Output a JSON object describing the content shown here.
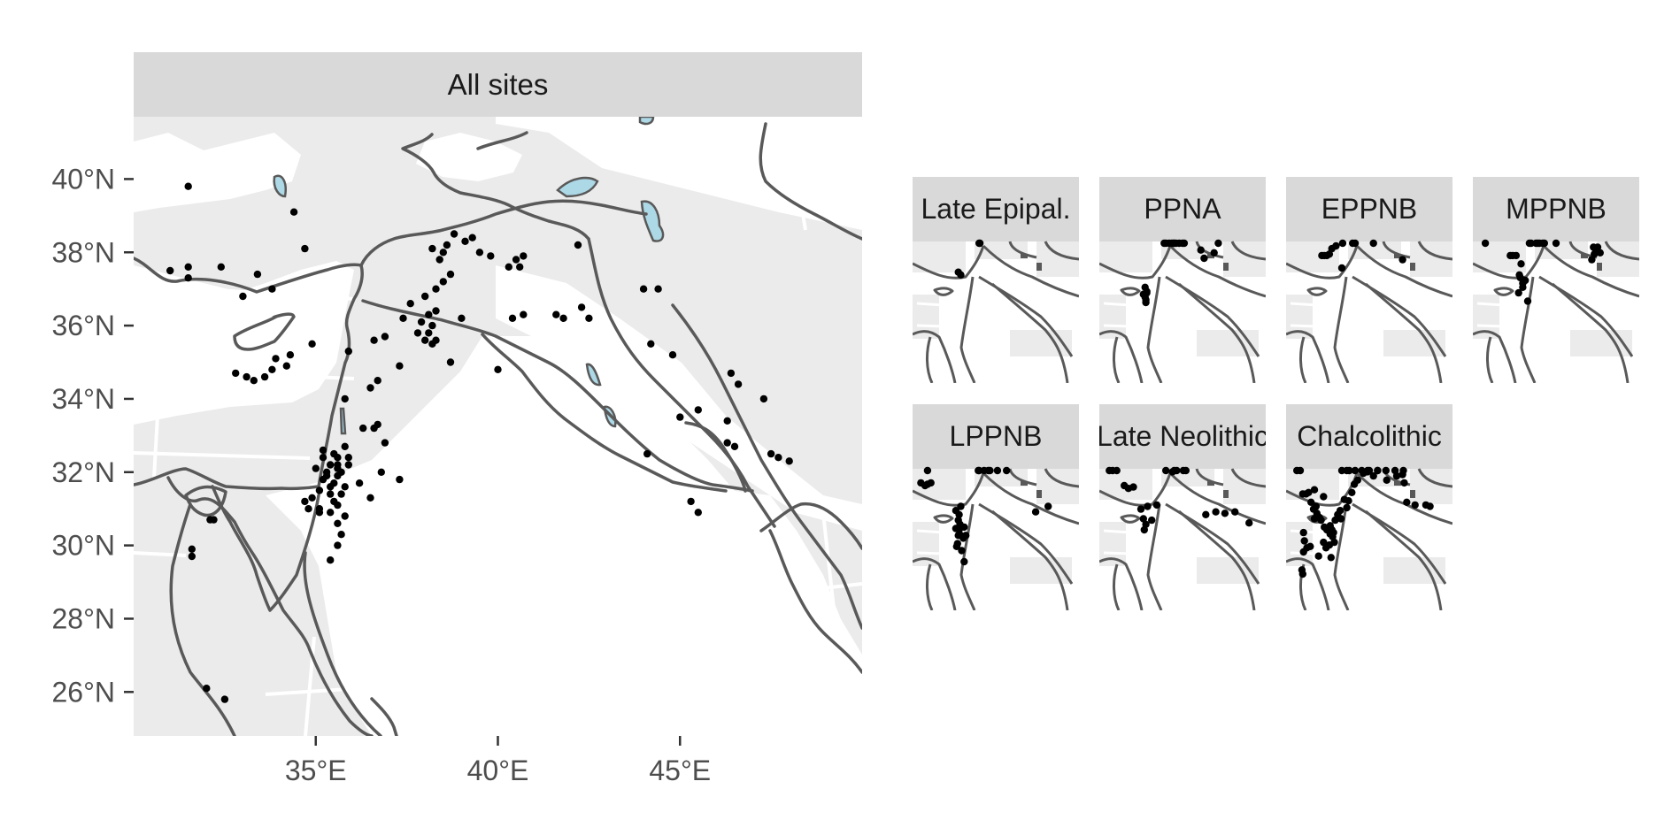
{
  "main_panel": {
    "title": "All sites",
    "y_ticks": [
      {
        "lat": 40,
        "label": "40°N"
      },
      {
        "lat": 38,
        "label": "38°N"
      },
      {
        "lat": 36,
        "label": "36°N"
      },
      {
        "lat": 34,
        "label": "34°N"
      },
      {
        "lat": 32,
        "label": "32°N"
      },
      {
        "lat": 30,
        "label": "30°N"
      },
      {
        "lat": 28,
        "label": "28°N"
      },
      {
        "lat": 26,
        "label": "26°N"
      }
    ],
    "x_ticks": [
      {
        "lon": 35,
        "label": "35°E"
      },
      {
        "lon": 40,
        "label": "40°E"
      },
      {
        "lon": 45,
        "label": "45°E"
      }
    ]
  },
  "facets": [
    {
      "title": "Late Epipal."
    },
    {
      "title": "PPNA"
    },
    {
      "title": "EPPNB"
    },
    {
      "title": "MPPNB"
    },
    {
      "title": "LPPNB"
    },
    {
      "title": "Late Neolithic"
    },
    {
      "title": "Chalcolithic"
    }
  ],
  "colors": {
    "strip_bg": "#d9d9d9",
    "panel_bg": "#ebebeb",
    "lowland_fill": "#ffffff",
    "lake_fill": "#add8e6",
    "river_border": "#595959",
    "site_point": "#000000"
  },
  "map_extent": {
    "lon": [
      30,
      50
    ],
    "lat": [
      24.8,
      41.7
    ]
  },
  "sites": {
    "all": [
      [
        31.5,
        39.8
      ],
      [
        31.0,
        37.5
      ],
      [
        31.5,
        37.6
      ],
      [
        31.5,
        37.3
      ],
      [
        32.4,
        37.6
      ],
      [
        33.0,
        36.8
      ],
      [
        33.4,
        37.4
      ],
      [
        33.8,
        37.0
      ],
      [
        34.4,
        39.1
      ],
      [
        34.7,
        38.1
      ],
      [
        32.8,
        34.7
      ],
      [
        33.1,
        34.6
      ],
      [
        33.3,
        34.5
      ],
      [
        33.6,
        34.6
      ],
      [
        33.8,
        34.8
      ],
      [
        34.2,
        34.9
      ],
      [
        33.9,
        35.1
      ],
      [
        34.3,
        35.2
      ],
      [
        34.9,
        35.5
      ],
      [
        35.5,
        32.5
      ],
      [
        35.6,
        32.2
      ],
      [
        35.7,
        32.0
      ],
      [
        35.5,
        31.7
      ],
      [
        35.4,
        31.4
      ],
      [
        35.5,
        31.2
      ],
      [
        35.4,
        30.9
      ],
      [
        35.6,
        30.6
      ],
      [
        35.7,
        30.3
      ],
      [
        35.6,
        30.0
      ],
      [
        35.8,
        32.7
      ],
      [
        35.9,
        32.4
      ],
      [
        35.3,
        32.0
      ],
      [
        35.2,
        31.8
      ],
      [
        35.1,
        31.5
      ],
      [
        34.9,
        31.3
      ],
      [
        34.8,
        31.0
      ],
      [
        35.1,
        31.0
      ],
      [
        35.3,
        31.9
      ],
      [
        35.8,
        31.6
      ],
      [
        35.2,
        32.6
      ],
      [
        35.0,
        32.1
      ],
      [
        35.6,
        31.9
      ],
      [
        35.7,
        31.4
      ],
      [
        35.6,
        31.1
      ],
      [
        35.8,
        30.8
      ],
      [
        35.4,
        29.6
      ],
      [
        35.9,
        32.2
      ],
      [
        35.6,
        32.1
      ],
      [
        35.4,
        32.2
      ],
      [
        34.7,
        31.2
      ],
      [
        35.1,
        30.9
      ],
      [
        35.4,
        31.6
      ],
      [
        35.6,
        32.4
      ],
      [
        35.2,
        32.4
      ],
      [
        36.2,
        31.7
      ],
      [
        36.5,
        31.3
      ],
      [
        36.8,
        32.0
      ],
      [
        36.9,
        32.8
      ],
      [
        37.3,
        31.8
      ],
      [
        36.3,
        33.2
      ],
      [
        36.6,
        33.2
      ],
      [
        36.7,
        33.3
      ],
      [
        35.8,
        34.0
      ],
      [
        35.9,
        35.3
      ],
      [
        36.6,
        35.6
      ],
      [
        36.9,
        35.7
      ],
      [
        36.7,
        34.5
      ],
      [
        36.5,
        34.3
      ],
      [
        37.3,
        34.9
      ],
      [
        37.4,
        36.2
      ],
      [
        37.6,
        36.6
      ],
      [
        37.9,
        36.1
      ],
      [
        37.8,
        35.8
      ],
      [
        38.0,
        35.6
      ],
      [
        38.2,
        35.5
      ],
      [
        38.3,
        35.6
      ],
      [
        38.1,
        35.8
      ],
      [
        38.2,
        36.0
      ],
      [
        38.1,
        36.3
      ],
      [
        38.3,
        36.4
      ],
      [
        38.0,
        36.8
      ],
      [
        38.3,
        37.0
      ],
      [
        38.5,
        37.2
      ],
      [
        38.7,
        37.4
      ],
      [
        38.4,
        37.8
      ],
      [
        38.2,
        38.1
      ],
      [
        38.5,
        38.0
      ],
      [
        38.8,
        38.5
      ],
      [
        38.6,
        38.2
      ],
      [
        39.1,
        38.3
      ],
      [
        39.3,
        38.4
      ],
      [
        39.5,
        38.0
      ],
      [
        39.8,
        37.9
      ],
      [
        40.3,
        37.6
      ],
      [
        40.5,
        37.8
      ],
      [
        40.7,
        37.9
      ],
      [
        40.6,
        37.6
      ],
      [
        38.7,
        35.0
      ],
      [
        39.0,
        36.2
      ],
      [
        40.0,
        34.8
      ],
      [
        40.4,
        36.2
      ],
      [
        40.7,
        36.3
      ],
      [
        41.6,
        36.3
      ],
      [
        41.8,
        36.2
      ],
      [
        42.3,
        36.5
      ],
      [
        42.5,
        36.2
      ],
      [
        42.2,
        38.2
      ],
      [
        44.0,
        37.0
      ],
      [
        44.2,
        35.5
      ],
      [
        44.8,
        35.2
      ],
      [
        45.0,
        33.5
      ],
      [
        45.5,
        33.7
      ],
      [
        46.3,
        33.4
      ],
      [
        46.4,
        34.7
      ],
      [
        46.6,
        34.4
      ],
      [
        47.3,
        34.0
      ],
      [
        46.3,
        32.8
      ],
      [
        46.5,
        32.7
      ],
      [
        47.5,
        32.5
      ],
      [
        47.7,
        32.4
      ],
      [
        48.0,
        32.3
      ],
      [
        44.1,
        32.5
      ],
      [
        45.3,
        31.2
      ],
      [
        45.5,
        30.9
      ],
      [
        44.4,
        37.0
      ],
      [
        31.6,
        29.7
      ],
      [
        31.6,
        29.9
      ],
      [
        32.1,
        30.7
      ],
      [
        32.2,
        30.7
      ],
      [
        32.0,
        26.1
      ],
      [
        32.5,
        25.8
      ]
    ],
    "late_epipal": [
      [
        35.5,
        33.4
      ],
      [
        35.8,
        33.2
      ],
      [
        38.0,
        36.1
      ],
      [
        38.1,
        36.2
      ]
    ],
    "ppna": [
      [
        35.5,
        32.3
      ],
      [
        35.7,
        31.9
      ],
      [
        35.5,
        31.6
      ],
      [
        35.6,
        31.4
      ],
      [
        35.6,
        31.2
      ],
      [
        35.3,
        31.8
      ],
      [
        35.7,
        32.0
      ],
      [
        37.8,
        36.2
      ],
      [
        38.0,
        36.5
      ],
      [
        38.4,
        36.8
      ],
      [
        38.7,
        37.0
      ],
      [
        39.0,
        37.0
      ],
      [
        39.2,
        36.9
      ],
      [
        39.6,
        36.6
      ],
      [
        40.0,
        36.4
      ],
      [
        40.2,
        36.5
      ],
      [
        38.9,
        37.1
      ],
      [
        42.2,
        35.0
      ],
      [
        42.6,
        34.4
      ],
      [
        43.8,
        34.8
      ],
      [
        44.3,
        35.5
      ]
    ],
    "eppnb": [
      [
        34.3,
        34.6
      ],
      [
        34.6,
        34.6
      ],
      [
        34.9,
        34.6
      ],
      [
        35.2,
        34.7
      ],
      [
        35.5,
        35.1
      ],
      [
        36.0,
        35.3
      ],
      [
        36.8,
        35.9
      ],
      [
        38.0,
        36.8
      ],
      [
        38.3,
        37.1
      ],
      [
        40.5,
        36.4
      ],
      [
        36.7,
        33.7
      ],
      [
        44.0,
        34.3
      ]
    ],
    "mppnb": [
      [
        31.5,
        36.7
      ],
      [
        34.5,
        34.6
      ],
      [
        34.8,
        34.6
      ],
      [
        35.2,
        34.6
      ],
      [
        35.8,
        34.0
      ],
      [
        35.6,
        33.2
      ],
      [
        35.7,
        33.0
      ],
      [
        36.0,
        32.6
      ],
      [
        36.0,
        32.3
      ],
      [
        36.3,
        32.8
      ],
      [
        35.5,
        31.9
      ],
      [
        36.6,
        31.3
      ],
      [
        37.6,
        36.3
      ],
      [
        37.8,
        36.5
      ],
      [
        38.0,
        36.8
      ],
      [
        38.4,
        37.0
      ],
      [
        38.6,
        36.9
      ],
      [
        40.0,
        36.0
      ],
      [
        44.5,
        35.2
      ],
      [
        44.8,
        35.0
      ],
      [
        45.0,
        35.2
      ],
      [
        44.3,
        34.3
      ],
      [
        44.6,
        34.7
      ],
      [
        45.3,
        34.8
      ],
      [
        36.8,
        36.8
      ],
      [
        37.0,
        36.9
      ]
    ],
    "lppnb": [
      [
        31.0,
        34.6
      ],
      [
        31.5,
        34.4
      ],
      [
        31.8,
        34.5
      ],
      [
        32.2,
        34.6
      ],
      [
        35.5,
        31.9
      ],
      [
        35.7,
        31.6
      ],
      [
        35.6,
        31.2
      ],
      [
        35.5,
        30.8
      ],
      [
        35.2,
        31.3
      ],
      [
        35.4,
        30.2
      ],
      [
        35.8,
        30.8
      ],
      [
        35.3,
        30.0
      ],
      [
        36.4,
        30.8
      ],
      [
        36.2,
        31.4
      ],
      [
        36.1,
        30.6
      ],
      [
        35.9,
        29.7
      ],
      [
        36.2,
        28.9
      ],
      [
        35.6,
        32.3
      ],
      [
        37.9,
        36.1
      ],
      [
        38.0,
        36.3
      ],
      [
        38.6,
        36.9
      ],
      [
        39.1,
        36.8
      ],
      [
        39.3,
        36.2
      ],
      [
        40.2,
        35.5
      ],
      [
        41.3,
        35.8
      ],
      [
        44.8,
        32.5
      ],
      [
        46.3,
        32.9
      ],
      [
        35.2,
        32.6
      ],
      [
        35.8,
        32.9
      ],
      [
        31.8,
        35.6
      ]
    ],
    "late_neolithic": [
      [
        31.2,
        35.6
      ],
      [
        31.6,
        35.6
      ],
      [
        32.1,
        35.6
      ],
      [
        33.0,
        34.4
      ],
      [
        33.5,
        34.2
      ],
      [
        34.1,
        34.3
      ],
      [
        35.3,
        32.0
      ],
      [
        35.6,
        31.6
      ],
      [
        35.4,
        31.2
      ],
      [
        35.8,
        32.9
      ],
      [
        36.3,
        31.9
      ],
      [
        35.0,
        32.7
      ],
      [
        36.9,
        33.0
      ],
      [
        38.8,
        35.4
      ],
      [
        39.0,
        36.0
      ],
      [
        39.3,
        35.8
      ],
      [
        40.1,
        36.0
      ],
      [
        40.4,
        35.9
      ],
      [
        42.8,
        32.3
      ],
      [
        44.0,
        32.5
      ],
      [
        45.1,
        32.4
      ],
      [
        46.3,
        32.5
      ],
      [
        48.0,
        31.7
      ],
      [
        38.0,
        36.4
      ]
    ],
    "chalcolithic": [
      [
        31.3,
        35.8
      ],
      [
        31.7,
        35.7
      ],
      [
        32.0,
        33.8
      ],
      [
        32.4,
        33.8
      ],
      [
        32.7,
        33.9
      ],
      [
        33.4,
        34.1
      ],
      [
        33.3,
        32.7
      ],
      [
        33.6,
        32.9
      ],
      [
        33.4,
        32.0
      ],
      [
        33.7,
        32.4
      ],
      [
        34.0,
        32.1
      ],
      [
        34.2,
        31.9
      ],
      [
        34.6,
        31.4
      ],
      [
        34.9,
        31.2
      ],
      [
        35.3,
        31.5
      ],
      [
        35.5,
        31.2
      ],
      [
        35.7,
        31.0
      ],
      [
        35.3,
        30.9
      ],
      [
        35.6,
        30.7
      ],
      [
        35.8,
        30.3
      ],
      [
        35.2,
        30.1
      ],
      [
        35.9,
        31.9
      ],
      [
        36.2,
        32.3
      ],
      [
        36.5,
        32.6
      ],
      [
        37.3,
        32.8
      ],
      [
        37.0,
        33.4
      ],
      [
        37.5,
        33.3
      ],
      [
        37.9,
        33.9
      ],
      [
        38.2,
        34.5
      ],
      [
        38.6,
        34.8
      ],
      [
        39.3,
        35.3
      ],
      [
        39.8,
        35.4
      ],
      [
        40.5,
        35.1
      ],
      [
        41.0,
        35.6
      ],
      [
        42.1,
        34.8
      ],
      [
        43.3,
        35.1
      ],
      [
        44.0,
        35.2
      ],
      [
        44.2,
        34.6
      ],
      [
        44.5,
        33.2
      ],
      [
        45.5,
        33.0
      ],
      [
        46.8,
        33.0
      ],
      [
        47.3,
        32.9
      ],
      [
        36.7,
        36.0
      ],
      [
        37.3,
        36.5
      ],
      [
        37.6,
        36.1
      ],
      [
        38.3,
        36.8
      ],
      [
        39.1,
        37.0
      ],
      [
        40.0,
        36.9
      ],
      [
        41.0,
        36.3
      ],
      [
        42.0,
        36.1
      ],
      [
        39.8,
        36.3
      ],
      [
        43.1,
        36.5
      ],
      [
        44.1,
        35.9
      ],
      [
        36.6,
        32.0
      ],
      [
        34.5,
        33.6
      ],
      [
        33.0,
        33.2
      ],
      [
        34.5,
        30.3
      ],
      [
        34.8,
        29.9
      ],
      [
        32.1,
        31.0
      ],
      [
        32.2,
        30.4
      ],
      [
        32.9,
        30.0
      ],
      [
        33.9,
        29.3
      ],
      [
        31.9,
        28.3
      ],
      [
        32.0,
        28.0
      ],
      [
        32.1,
        29.6
      ],
      [
        32.5,
        29.9
      ],
      [
        35.4,
        29.2
      ]
    ]
  }
}
